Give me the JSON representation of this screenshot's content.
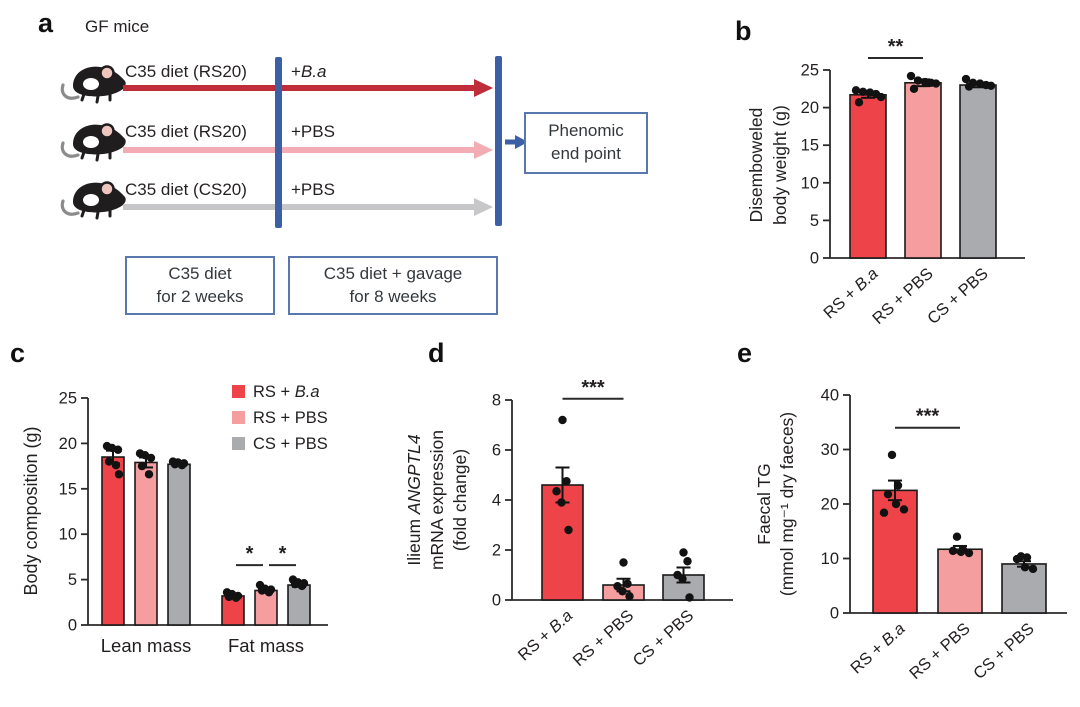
{
  "figure_background": "#ffffff",
  "colors": {
    "bar_red": "#ee4348",
    "bar_pink": "#f59e9f",
    "bar_gray": "#aaabaf",
    "arrow_red": "#bf2c3a",
    "arrow_pink": "#f3acb4",
    "arrow_gray": "#c7c7c9",
    "timeline_blue": "#3c5fa6",
    "box_border_blue": "#5878ad",
    "dot_black": "#121212",
    "axis_dark": "#2b2a2a"
  },
  "panels": {
    "a": {
      "label": "a",
      "group_title": "GF mice",
      "timeline_rows": [
        {
          "diet": "C35 diet (RS20)",
          "treatment": "+B.a",
          "arrow_color": "#bf2c3a"
        },
        {
          "diet": "C35 diet (RS20)",
          "treatment": "+PBS",
          "arrow_color": "#f3acb4"
        },
        {
          "diet": "C35 diet (CS20)",
          "treatment": "+PBS",
          "arrow_color": "#c7c7c9"
        }
      ],
      "endpoint_box": {
        "line1": "Phenomic",
        "line2": "end point"
      },
      "phase_box_1": {
        "line1": "C35 diet",
        "line2": "for 2 weeks"
      },
      "phase_box_2": {
        "line1": "C35 diet + gavage",
        "line2": "for 8 weeks"
      }
    },
    "b": {
      "label": "b"
    },
    "c": {
      "label": "c"
    },
    "d": {
      "label": "d"
    },
    "e": {
      "label": "e"
    }
  },
  "chart_data": [
    {
      "panel": "b",
      "type": "bar",
      "ylabel": [
        "Disemboweled",
        "body weight (g)"
      ],
      "ylim": [
        0,
        25
      ],
      "yticks": [
        0,
        5,
        10,
        15,
        20,
        25
      ],
      "categories": [
        "RS + B.a",
        "RS + PBS",
        "CS + PBS"
      ],
      "bar_colors": [
        "#ee4348",
        "#f59e9f",
        "#aaabaf"
      ],
      "values": [
        21.7,
        23.3,
        23.0
      ],
      "errors": [
        0.4,
        0.45,
        0.3
      ],
      "points": [
        [
          22.3,
          22.1,
          22.0,
          21.8,
          21.4,
          20.7
        ],
        [
          24.2,
          23.6,
          23.4,
          23.3,
          23.2,
          22.5
        ],
        [
          23.8,
          23.3,
          23.2,
          23.0,
          22.9,
          22.8
        ]
      ],
      "significance": [
        {
          "between": [
            0,
            1
          ],
          "label": "**",
          "y": 26.6
        }
      ]
    },
    {
      "panel": "c",
      "type": "grouped_bar",
      "ylabel": [
        "Body composition (g)"
      ],
      "ylim": [
        0,
        25
      ],
      "yticks": [
        0,
        5,
        10,
        15,
        20,
        25
      ],
      "groups": [
        "Lean mass",
        "Fat mass"
      ],
      "series": [
        {
          "name": "RS + B.a",
          "color": "#ee4348",
          "values": [
            18.5,
            3.2
          ],
          "errors": [
            0.7,
            0.2
          ],
          "points": [
            [
              19.7,
              19.5,
              19.3,
              18.0,
              17.6,
              16.6
            ],
            [
              3.6,
              3.4,
              3.2,
              3.1,
              3.0
            ]
          ]
        },
        {
          "name": "RS + PBS",
          "color": "#f59e9f",
          "values": [
            17.9,
            3.8
          ],
          "errors": [
            0.55,
            0.2
          ],
          "points": [
            [
              18.9,
              18.7,
              18.4,
              17.5,
              16.6
            ],
            [
              4.4,
              4.0,
              3.9,
              3.8,
              3.6
            ]
          ]
        },
        {
          "name": "CS + PBS",
          "color": "#aaabaf",
          "values": [
            17.7,
            4.4
          ],
          "errors": [
            0.15,
            0.2
          ],
          "points": [
            [
              18.0,
              17.9,
              17.8,
              17.7,
              17.6
            ],
            [
              5.0,
              4.7,
              4.6,
              4.5,
              4.3
            ]
          ]
        }
      ],
      "significance": [
        {
          "group": 1,
          "between": [
            0,
            1
          ],
          "label": "*",
          "y": 6.6
        },
        {
          "group": 1,
          "between": [
            1,
            2
          ],
          "label": "*",
          "y": 6.6
        }
      ]
    },
    {
      "panel": "d",
      "type": "bar",
      "ylabel": [
        "Ilieum ANGPTL4",
        "mRNA expression",
        "(fold change)"
      ],
      "ylim": [
        0,
        8
      ],
      "yticks": [
        0,
        2,
        4,
        6,
        8
      ],
      "categories": [
        "RS + B.a",
        "RS + PBS",
        "CS + PBS"
      ],
      "bar_colors": [
        "#ee4348",
        "#f59e9f",
        "#aaabaf"
      ],
      "values": [
        4.6,
        0.6,
        1.0
      ],
      "errors": [
        0.7,
        0.25,
        0.3
      ],
      "points": [
        [
          7.2,
          4.75,
          4.35,
          3.9,
          2.8
        ],
        [
          1.5,
          0.65,
          0.55,
          0.35,
          0.15
        ],
        [
          1.9,
          1.55,
          1.0,
          0.85,
          0.1
        ]
      ],
      "significance": [
        {
          "between": [
            0,
            1
          ],
          "label": "***",
          "y": 8.05
        }
      ]
    },
    {
      "panel": "e",
      "type": "bar",
      "ylabel": [
        "Faecal TG",
        "(mmol mg⁻¹ dry faeces)"
      ],
      "ylim": [
        0,
        40
      ],
      "yticks": [
        0,
        10,
        20,
        30,
        40
      ],
      "categories": [
        "RS + B.a",
        "RS + PBS",
        "CS + PBS"
      ],
      "bar_colors": [
        "#ee4348",
        "#f59e9f",
        "#aaabaf"
      ],
      "values": [
        22.5,
        11.7,
        9.0
      ],
      "errors": [
        1.8,
        0.6,
        0.5
      ],
      "points": [
        [
          29.0,
          23.4,
          21.8,
          20.0,
          19.0,
          18.4
        ],
        [
          14.0,
          11.6,
          11.4,
          11.2,
          11.0
        ],
        [
          10.4,
          10.2,
          9.9,
          8.4,
          8.1
        ]
      ],
      "significance": [
        {
          "between": [
            0,
            1
          ],
          "label": "***",
          "y": 34.0
        }
      ]
    }
  ]
}
